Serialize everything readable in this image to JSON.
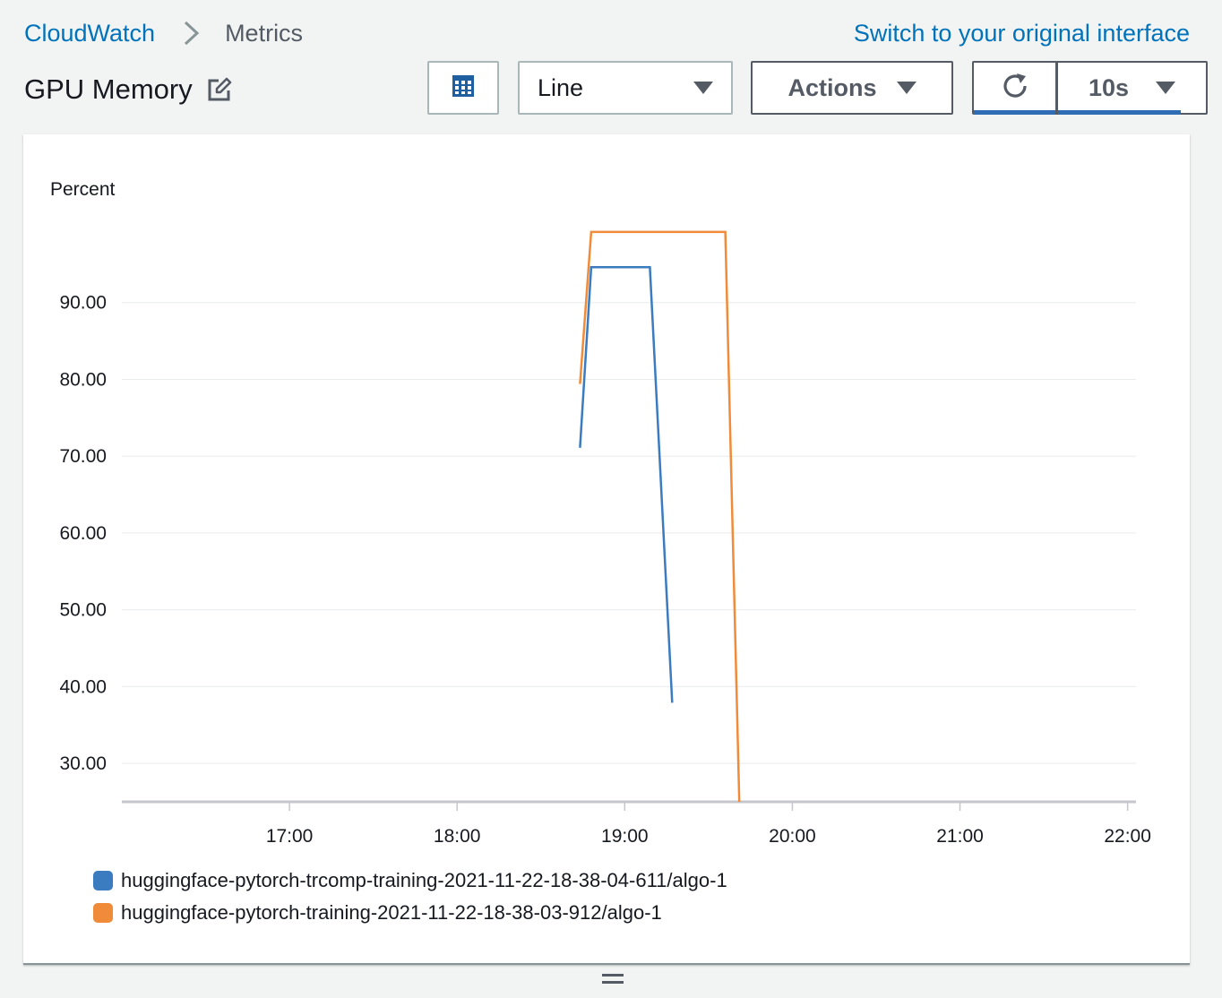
{
  "breadcrumb": {
    "root": "CloudWatch",
    "current": "Metrics"
  },
  "switch_link": "Switch to your original interface",
  "title": "GPU Memory",
  "toolbar": {
    "chart_type": "Line",
    "actions_label": "Actions",
    "refresh_interval": "10s"
  },
  "icons": {
    "breadcrumb_separator": "chevron-right-icon",
    "edit": "edit-icon",
    "grid": "grid-icon",
    "dropdown": "caret-down-icon",
    "refresh": "refresh-icon",
    "resize": "resize-handle-icon"
  },
  "colors": {
    "link": "#0073bb",
    "series_1": "#3b7bbf",
    "series_2": "#f08b3a",
    "accent_underline": "#2e6db4"
  },
  "chart_data": {
    "type": "line",
    "ylabel": "Percent",
    "y_ticks": [
      "90.00",
      "80.00",
      "70.00",
      "60.00",
      "50.00",
      "40.00",
      "30.00"
    ],
    "x_ticks": [
      "17:00",
      "18:00",
      "19:00",
      "20:00",
      "21:00",
      "22:00"
    ],
    "ylim": [
      25,
      100
    ],
    "xlim": [
      "16:00",
      "22:03"
    ],
    "grid": "horizontal",
    "legend_position": "bottom-left",
    "series": [
      {
        "name": "huggingface-pytorch-trcomp-training-2021-11-22-18-38-04-611/algo-1",
        "color": "#3b7bbf",
        "points": [
          [
            "18:44",
            71.1
          ],
          [
            "18:48",
            94.6
          ],
          [
            "19:09",
            94.6
          ],
          [
            "19:17",
            37.9
          ]
        ]
      },
      {
        "name": "huggingface-pytorch-training-2021-11-22-18-38-03-912/algo-1",
        "color": "#f08b3a",
        "points": [
          [
            "18:44",
            79.4
          ],
          [
            "18:48",
            99.2
          ],
          [
            "19:36",
            99.2
          ],
          [
            "19:41",
            25
          ]
        ]
      }
    ]
  }
}
